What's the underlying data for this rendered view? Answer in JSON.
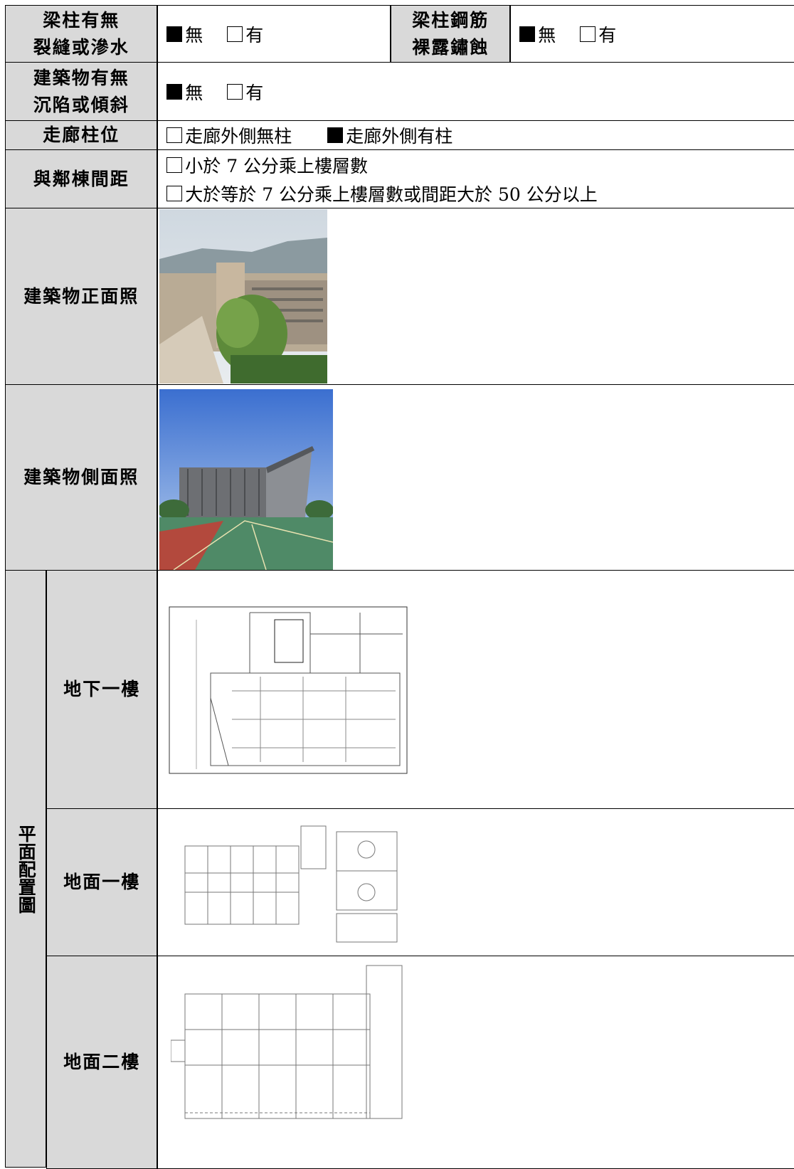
{
  "table": {
    "beam_crack": {
      "label": "梁柱有無\n裂縫或滲水",
      "options": [
        {
          "label": "無",
          "checked": true
        },
        {
          "label": "有",
          "checked": false
        }
      ]
    },
    "rebar_exposed": {
      "label": "梁柱鋼筋\n裸露鏽蝕",
      "options": [
        {
          "label": "無",
          "checked": true
        },
        {
          "label": "有",
          "checked": false
        }
      ]
    },
    "settlement": {
      "label": "建築物有無\n沉陷或傾斜",
      "options": [
        {
          "label": "無",
          "checked": true
        },
        {
          "label": "有",
          "checked": false
        }
      ]
    },
    "corridor_column": {
      "label": "走廊柱位",
      "options": [
        {
          "label": "走廊外側無柱",
          "checked": false
        },
        {
          "label": "走廊外側有柱",
          "checked": true
        }
      ]
    },
    "neighbor_distance": {
      "label": "與鄰棟間距",
      "options": [
        {
          "label": "小於 7 公分乘上樓層數",
          "checked": false
        },
        {
          "label": "大於等於 7 公分乘上樓層數或間距大於 50 公分以上",
          "checked": false
        }
      ]
    },
    "front_photo": {
      "label": "建築物正面照"
    },
    "side_photo": {
      "label": "建築物側面照"
    },
    "floor_plans": {
      "label": "平面配置圖",
      "floors": [
        {
          "label": "地下一樓"
        },
        {
          "label": "地面一樓"
        },
        {
          "label": "地面二樓"
        }
      ]
    }
  }
}
